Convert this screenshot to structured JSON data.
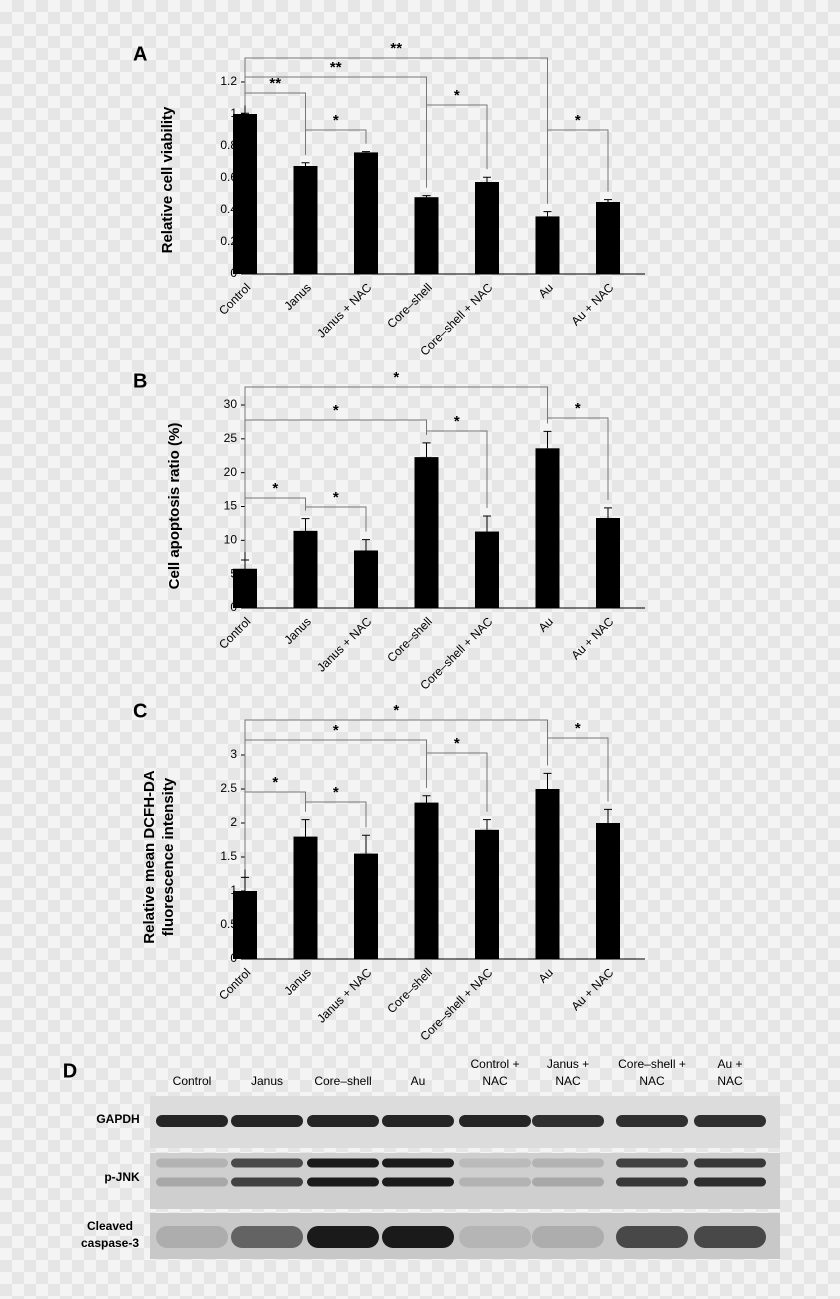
{
  "chart_data": [
    {
      "type": "bar",
      "label": "A",
      "y_label": "Relative cell viability",
      "categories": [
        "Control",
        "Janus",
        "Janus + NAC",
        "Core–shell",
        "Core–shell + NAC",
        "Au",
        "Au + NAC"
      ],
      "values": [
        1.0,
        0.675,
        0.76,
        0.48,
        0.575,
        0.36,
        0.45
      ],
      "errors": [
        0.005,
        0.02,
        0.005,
        0.01,
        0.03,
        0.03,
        0.015
      ],
      "color": "#000000",
      "ylim": [
        0,
        1.2
      ],
      "yticks": [
        0,
        0.2,
        0.4,
        0.6,
        0.8,
        1,
        1.2
      ],
      "annotations": [
        {
          "text": "**",
          "categories": [
            "Control",
            "Au"
          ]
        },
        {
          "text": "**",
          "categories": [
            "Control",
            "Core–shell"
          ]
        },
        {
          "text": "**",
          "categories": [
            "Control",
            "Janus"
          ]
        },
        {
          "text": "*",
          "categories": [
            "Janus",
            "Janus + NAC"
          ]
        },
        {
          "text": "*",
          "categories": [
            "Core–shell",
            "Core–shell + NAC"
          ]
        },
        {
          "text": "*",
          "categories": [
            "Au",
            "Au + NAC"
          ]
        }
      ]
    },
    {
      "type": "bar",
      "label": "B",
      "y_label": "Cell apoptosis ratio (%)",
      "categories": [
        "Control",
        "Janus",
        "Janus + NAC",
        "Core–shell",
        "Core–shell + NAC",
        "Au",
        "Au + NAC"
      ],
      "values": [
        5.8,
        11.4,
        8.5,
        22.3,
        11.3,
        23.6,
        13.3
      ],
      "errors": [
        1.3,
        1.8,
        1.6,
        2.1,
        2.3,
        2.5,
        1.5
      ],
      "color": "#000000",
      "ylim": [
        0,
        30
      ],
      "yticks": [
        0,
        5,
        10,
        15,
        20,
        25,
        30
      ],
      "annotations": [
        {
          "text": "*",
          "categories": [
            "Control",
            "Au"
          ]
        },
        {
          "text": "*",
          "categories": [
            "Control",
            "Core–shell"
          ]
        },
        {
          "text": "*",
          "categories": [
            "Core–shell",
            "Core–shell + NAC"
          ]
        },
        {
          "text": "*",
          "categories": [
            "Au",
            "Au + NAC"
          ]
        },
        {
          "text": "*",
          "categories": [
            "Control",
            "Janus"
          ]
        },
        {
          "text": "*",
          "categories": [
            "Janus",
            "Janus + NAC"
          ]
        }
      ]
    },
    {
      "type": "bar",
      "label": "C",
      "y_label": [
        "Relative mean DCFH-DA",
        "fluorescence intensity"
      ],
      "categories": [
        "Control",
        "Janus",
        "Janus + NAC",
        "Core–shell",
        "Core–shell + NAC",
        "Au",
        "Au + NAC"
      ],
      "values": [
        1.0,
        1.8,
        1.55,
        2.3,
        1.9,
        2.5,
        2.0
      ],
      "errors": [
        0.2,
        0.25,
        0.27,
        0.1,
        0.15,
        0.23,
        0.2
      ],
      "color": "#000000",
      "ylim": [
        0,
        3
      ],
      "yticks": [
        0,
        0.5,
        1,
        1.5,
        2,
        2.5,
        3
      ],
      "annotations": [
        {
          "text": "*",
          "categories": [
            "Control",
            "Au"
          ]
        },
        {
          "text": "*",
          "categories": [
            "Control",
            "Core–shell"
          ]
        },
        {
          "text": "*",
          "categories": [
            "Core–shell",
            "Core–shell + NAC"
          ]
        },
        {
          "text": "*",
          "categories": [
            "Au",
            "Au + NAC"
          ]
        },
        {
          "text": "*",
          "categories": [
            "Control",
            "Janus"
          ]
        },
        {
          "text": "*",
          "categories": [
            "Janus",
            "Janus + NAC"
          ]
        }
      ]
    }
  ],
  "blot": {
    "label": "D",
    "columns": [
      [
        "Control"
      ],
      [
        "Janus"
      ],
      [
        "Core–shell"
      ],
      [
        "Au"
      ],
      [
        "Control +",
        "NAC"
      ],
      [
        "Janus +",
        "NAC"
      ],
      [
        "Core–shell +",
        "NAC"
      ],
      [
        "Au +",
        "NAC"
      ]
    ],
    "rows": [
      [
        "GAPDH"
      ],
      [
        "p-JNK"
      ],
      [
        "Cleaved",
        "caspase-3"
      ]
    ]
  }
}
